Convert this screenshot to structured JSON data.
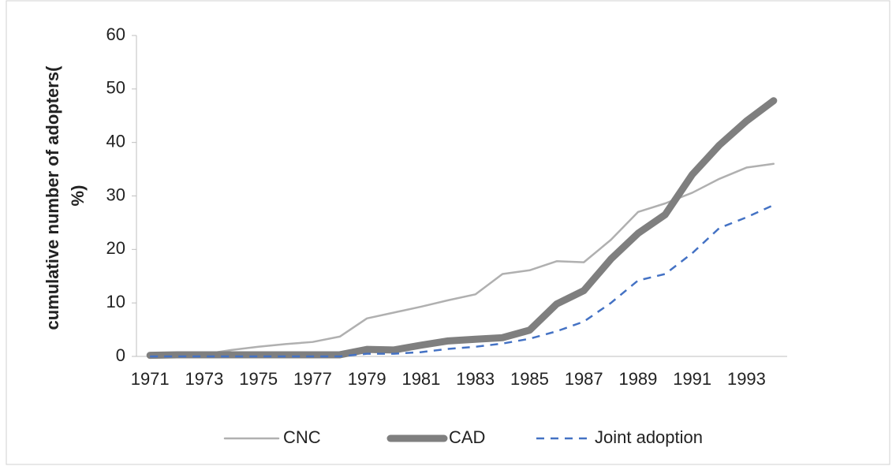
{
  "chart_data": {
    "type": "line",
    "ylabel": [
      "cumulative number of adopters(",
      "%)"
    ],
    "categories": [
      "1971",
      null,
      "1973",
      null,
      "1975",
      null,
      "1977",
      null,
      "1979",
      null,
      "1981",
      null,
      "1983",
      null,
      "1985",
      null,
      "1987",
      null,
      "1989",
      null,
      "1991",
      null,
      "1993",
      null
    ],
    "series": [
      {
        "name": "CNC",
        "color": "#b0b0b0",
        "width": 2.5,
        "dash": "solid",
        "values": [
          0.2,
          0.3,
          0.4,
          1.2,
          1.8,
          2.3,
          2.7,
          3.7,
          7.1,
          8.2,
          9.3,
          10.5,
          11.6,
          15.4,
          16.1,
          17.8,
          17.6,
          21.8,
          27,
          28.6,
          30.6,
          33.2,
          35.3,
          36
        ]
      },
      {
        "name": "CAD",
        "color": "#7f7f7f",
        "width": 9,
        "dash": "solid",
        "values": [
          0.2,
          0.3,
          0.3,
          0.3,
          0.3,
          0.3,
          0.3,
          0.3,
          1.3,
          1.2,
          2.1,
          2.9,
          3.2,
          3.5,
          4.9,
          9.8,
          12.3,
          18.2,
          23,
          26.5,
          34,
          39.5,
          44,
          47.8
        ]
      },
      {
        "name": "Joint adoption",
        "color": "#4472c4",
        "width": 2.5,
        "dash": "dashed",
        "values": [
          0,
          0,
          0,
          0,
          0,
          0,
          0,
          0,
          0.5,
          0.5,
          0.8,
          1.4,
          1.8,
          2.4,
          3.3,
          4.7,
          6.5,
          10,
          14.2,
          15.4,
          19.3,
          24,
          26,
          28.3
        ]
      }
    ],
    "ylim": [
      0,
      60
    ],
    "yticks": [
      0,
      10,
      20,
      30,
      40,
      50,
      60
    ],
    "grid": false,
    "legend": "bottom"
  }
}
